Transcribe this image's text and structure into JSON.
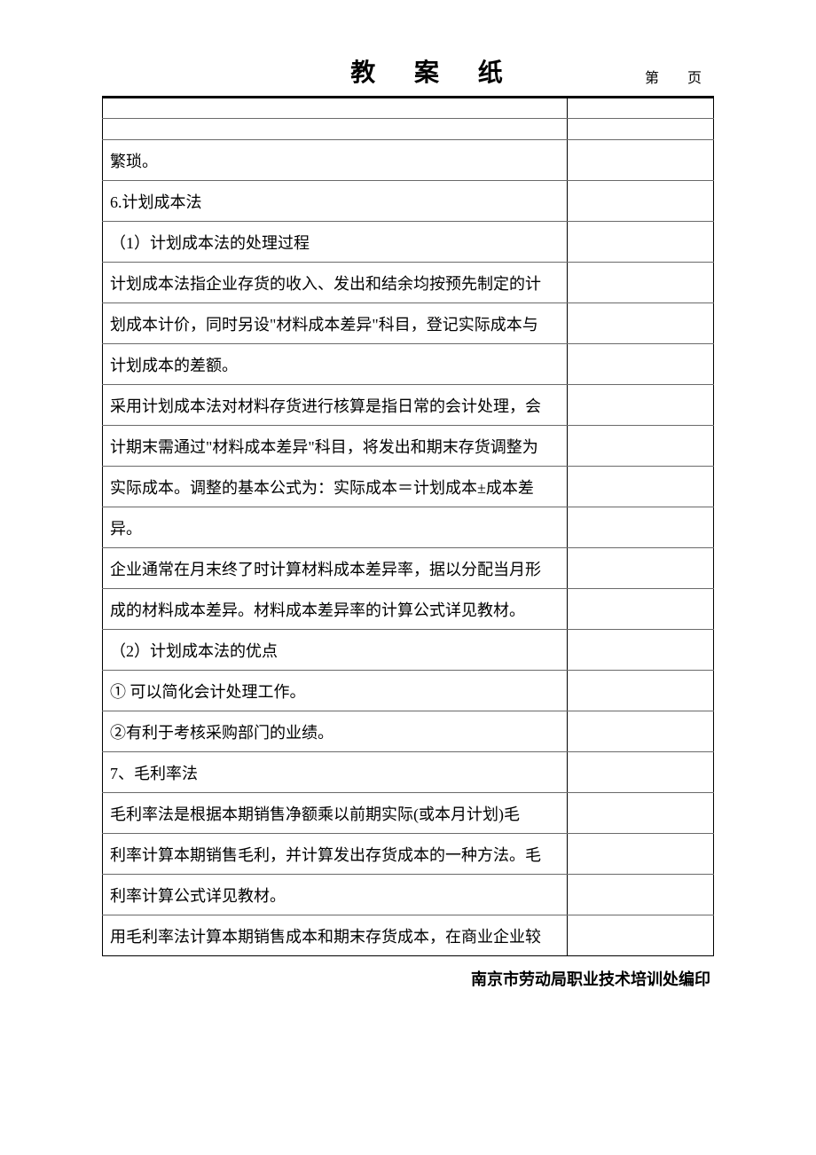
{
  "title": "教 案 纸",
  "page_label": "第 页",
  "footer": "南京市劳动局职业技术培训处编印",
  "rows": [
    {
      "main": "",
      "side": "",
      "short": true
    },
    {
      "main": "",
      "side": "",
      "short": true
    },
    {
      "main": "繁琐。",
      "side": ""
    },
    {
      "main": "6.计划成本法",
      "side": ""
    },
    {
      "main": "（1）计划成本法的处理过程",
      "side": ""
    },
    {
      "main": "计划成本法指企业存货的收入、发出和结余均按预先制定的计",
      "side": ""
    },
    {
      "main": "划成本计价，同时另设\"材料成本差异\"科目，登记实际成本与",
      "side": ""
    },
    {
      "main": "计划成本的差额。",
      "side": ""
    },
    {
      "main": "采用计划成本法对材料存货进行核算是指日常的会计处理，会",
      "side": ""
    },
    {
      "main": "计期末需通过\"材料成本差异\"科目，将发出和期末存货调整为",
      "side": ""
    },
    {
      "main": "实际成本。调整的基本公式为：实际成本＝计划成本±成本差",
      "side": ""
    },
    {
      "main": "异。",
      "side": ""
    },
    {
      "main": "企业通常在月末终了时计算材料成本差异率，据以分配当月形",
      "side": ""
    },
    {
      "main": "成的材料成本差异。材料成本差异率的计算公式详见教材。",
      "side": ""
    },
    {
      "main": "（2）计划成本法的优点",
      "side": ""
    },
    {
      "main": "① 可以简化会计处理工作。",
      "side": ""
    },
    {
      "main": "②有利于考核采购部门的业绩。",
      "side": ""
    },
    {
      "main": "7、毛利率法",
      "side": ""
    },
    {
      "main": "毛利率法是根据本期销售净额乘以前期实际(或本月计划)毛",
      "side": ""
    },
    {
      "main": "利率计算本期销售毛利，并计算发出存货成本的一种方法。毛",
      "side": ""
    },
    {
      "main": "利率计算公式详见教材。",
      "side": ""
    },
    {
      "main": "用毛利率法计算本期销售成本和期末存货成本，在商业企业较",
      "side": ""
    }
  ],
  "styles": {
    "background_color": "#ffffff",
    "text_color": "#000000",
    "border_color_heavy": "#000000",
    "border_color_light": "#6a6a6a",
    "title_fontsize": 28,
    "body_fontsize": 18,
    "footer_fontsize": 18
  }
}
